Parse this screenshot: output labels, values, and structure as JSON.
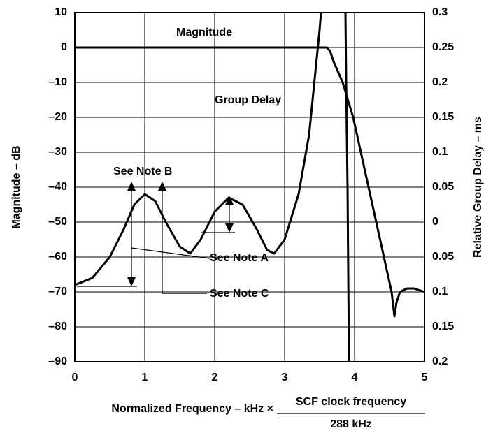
{
  "chart_data": {
    "type": "line",
    "x_label": "Normalized Frequency – kHz ×",
    "x_label_numerator": "SCF clock frequency",
    "x_label_denominator": "288 kHz",
    "y_label": "Magnitude – dB",
    "y2_label": "Relative Group Delay – ms",
    "annotations": [
      "See Note A",
      "See Note B",
      "See Note C"
    ],
    "xlim": [
      0,
      5
    ],
    "xticks": [
      0,
      1,
      2,
      3,
      4,
      5
    ],
    "ylim": [
      -90,
      10
    ],
    "yticks": [
      {
        "value": -90,
        "label": "–90"
      },
      {
        "value": -80,
        "label": "–80"
      },
      {
        "value": -70,
        "label": "–70"
      },
      {
        "value": -60,
        "label": "–60"
      },
      {
        "value": -50,
        "label": "–50"
      },
      {
        "value": -40,
        "label": "–40"
      },
      {
        "value": -30,
        "label": "–30"
      },
      {
        "value": -20,
        "label": "–20"
      },
      {
        "value": -10,
        "label": "–10"
      },
      0,
      10
    ],
    "y2lim": [
      -0.2,
      0.3
    ],
    "y2ticks": [
      {
        "value": -0.2,
        "label": "0.2"
      },
      {
        "value": -0.15,
        "label": "0.15"
      },
      {
        "value": -0.1,
        "label": "0.1"
      },
      {
        "value": -0.05,
        "label": "0.05"
      },
      0,
      0.05,
      0.1,
      0.15,
      0.2,
      0.25,
      0.3
    ],
    "grid": true,
    "series": [
      {
        "name": "Magnitude",
        "color": "#000000",
        "x": [
          0,
          1,
          2,
          3,
          3.6,
          3.65,
          3.7,
          3.83,
          3.98,
          4.09,
          4.2,
          4.31,
          4.42,
          4.53,
          4.57,
          4.6,
          4.65,
          4.75,
          4.85,
          5
        ],
        "values": [
          0,
          0,
          0,
          0,
          0,
          -1,
          -4,
          -10,
          -20,
          -30,
          -40,
          -50,
          -60,
          -70,
          -77,
          -73,
          -70,
          -69,
          -69,
          -70
        ]
      },
      {
        "name": "Group Delay",
        "color": "#000000",
        "axis": "y2",
        "x": [
          0,
          0.25,
          0.5,
          0.7,
          0.85,
          1.0,
          1.15,
          1.3,
          1.5,
          1.65,
          1.8,
          2.0,
          2.2,
          2.4,
          2.6,
          2.75,
          2.85,
          3.0,
          3.2,
          3.35,
          3.45,
          3.5,
          3.52,
          null,
          3.87,
          3.88,
          3.9,
          3.92
        ],
        "values": [
          -0.09,
          -0.08,
          -0.05,
          -0.01,
          0.025,
          0.04,
          0.03,
          0,
          -0.035,
          -0.045,
          -0.025,
          0.015,
          0.035,
          0.025,
          -0.01,
          -0.04,
          -0.045,
          -0.025,
          0.04,
          0.125,
          0.225,
          0.275,
          0.3,
          null,
          0.3,
          0.2,
          0.05,
          -0.2
        ]
      }
    ]
  }
}
